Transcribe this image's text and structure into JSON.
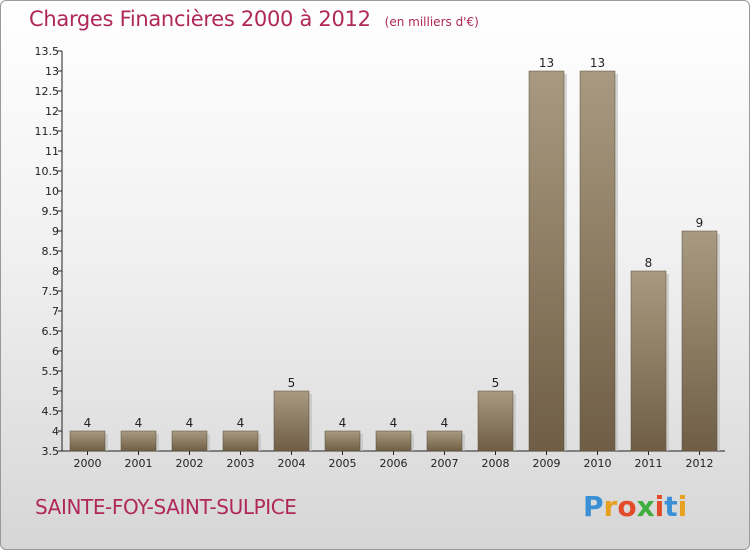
{
  "title": "Charges Financières 2000 à 2012",
  "unit": "(en milliers d'€)",
  "city": "SAINTE-FOY-SAINT-SULPICE",
  "logo": {
    "text": "Proxiti",
    "letter_colors": [
      "#3a8fd6",
      "#e8a020",
      "#e24a2a",
      "#3fae3f",
      "#e24a2a",
      "#3a8fd6",
      "#e8a020"
    ]
  },
  "colors": {
    "title": "#b0285a",
    "bar_top": "#a89a80",
    "bar_bottom": "#6f5e45"
  },
  "chart_data": {
    "type": "bar",
    "title": "Charges Financières 2000 à 2012",
    "subtitle": "(en milliers d'€)",
    "xlabel": "",
    "ylabel": "",
    "categories": [
      "2000",
      "2001",
      "2002",
      "2003",
      "2004",
      "2005",
      "2006",
      "2007",
      "2008",
      "2009",
      "2010",
      "2011",
      "2012"
    ],
    "values": [
      4,
      4,
      4,
      4,
      5,
      4,
      4,
      4,
      5,
      13,
      13,
      8,
      9
    ],
    "data_labels": [
      "4",
      "4",
      "4",
      "4",
      "5",
      "4",
      "4",
      "4",
      "5",
      "13",
      "13",
      "8",
      "9"
    ],
    "ylim": [
      3.5,
      13.5
    ],
    "yticks": [
      "3.5",
      "4",
      "4.5",
      "5",
      "5.5",
      "6",
      "6.5",
      "7",
      "7.5",
      "8",
      "8.5",
      "9",
      "9.5",
      "10",
      "10.5",
      "11",
      "11.5",
      "12",
      "12.5",
      "13",
      "13.5"
    ],
    "grid": false,
    "legend": "none"
  }
}
